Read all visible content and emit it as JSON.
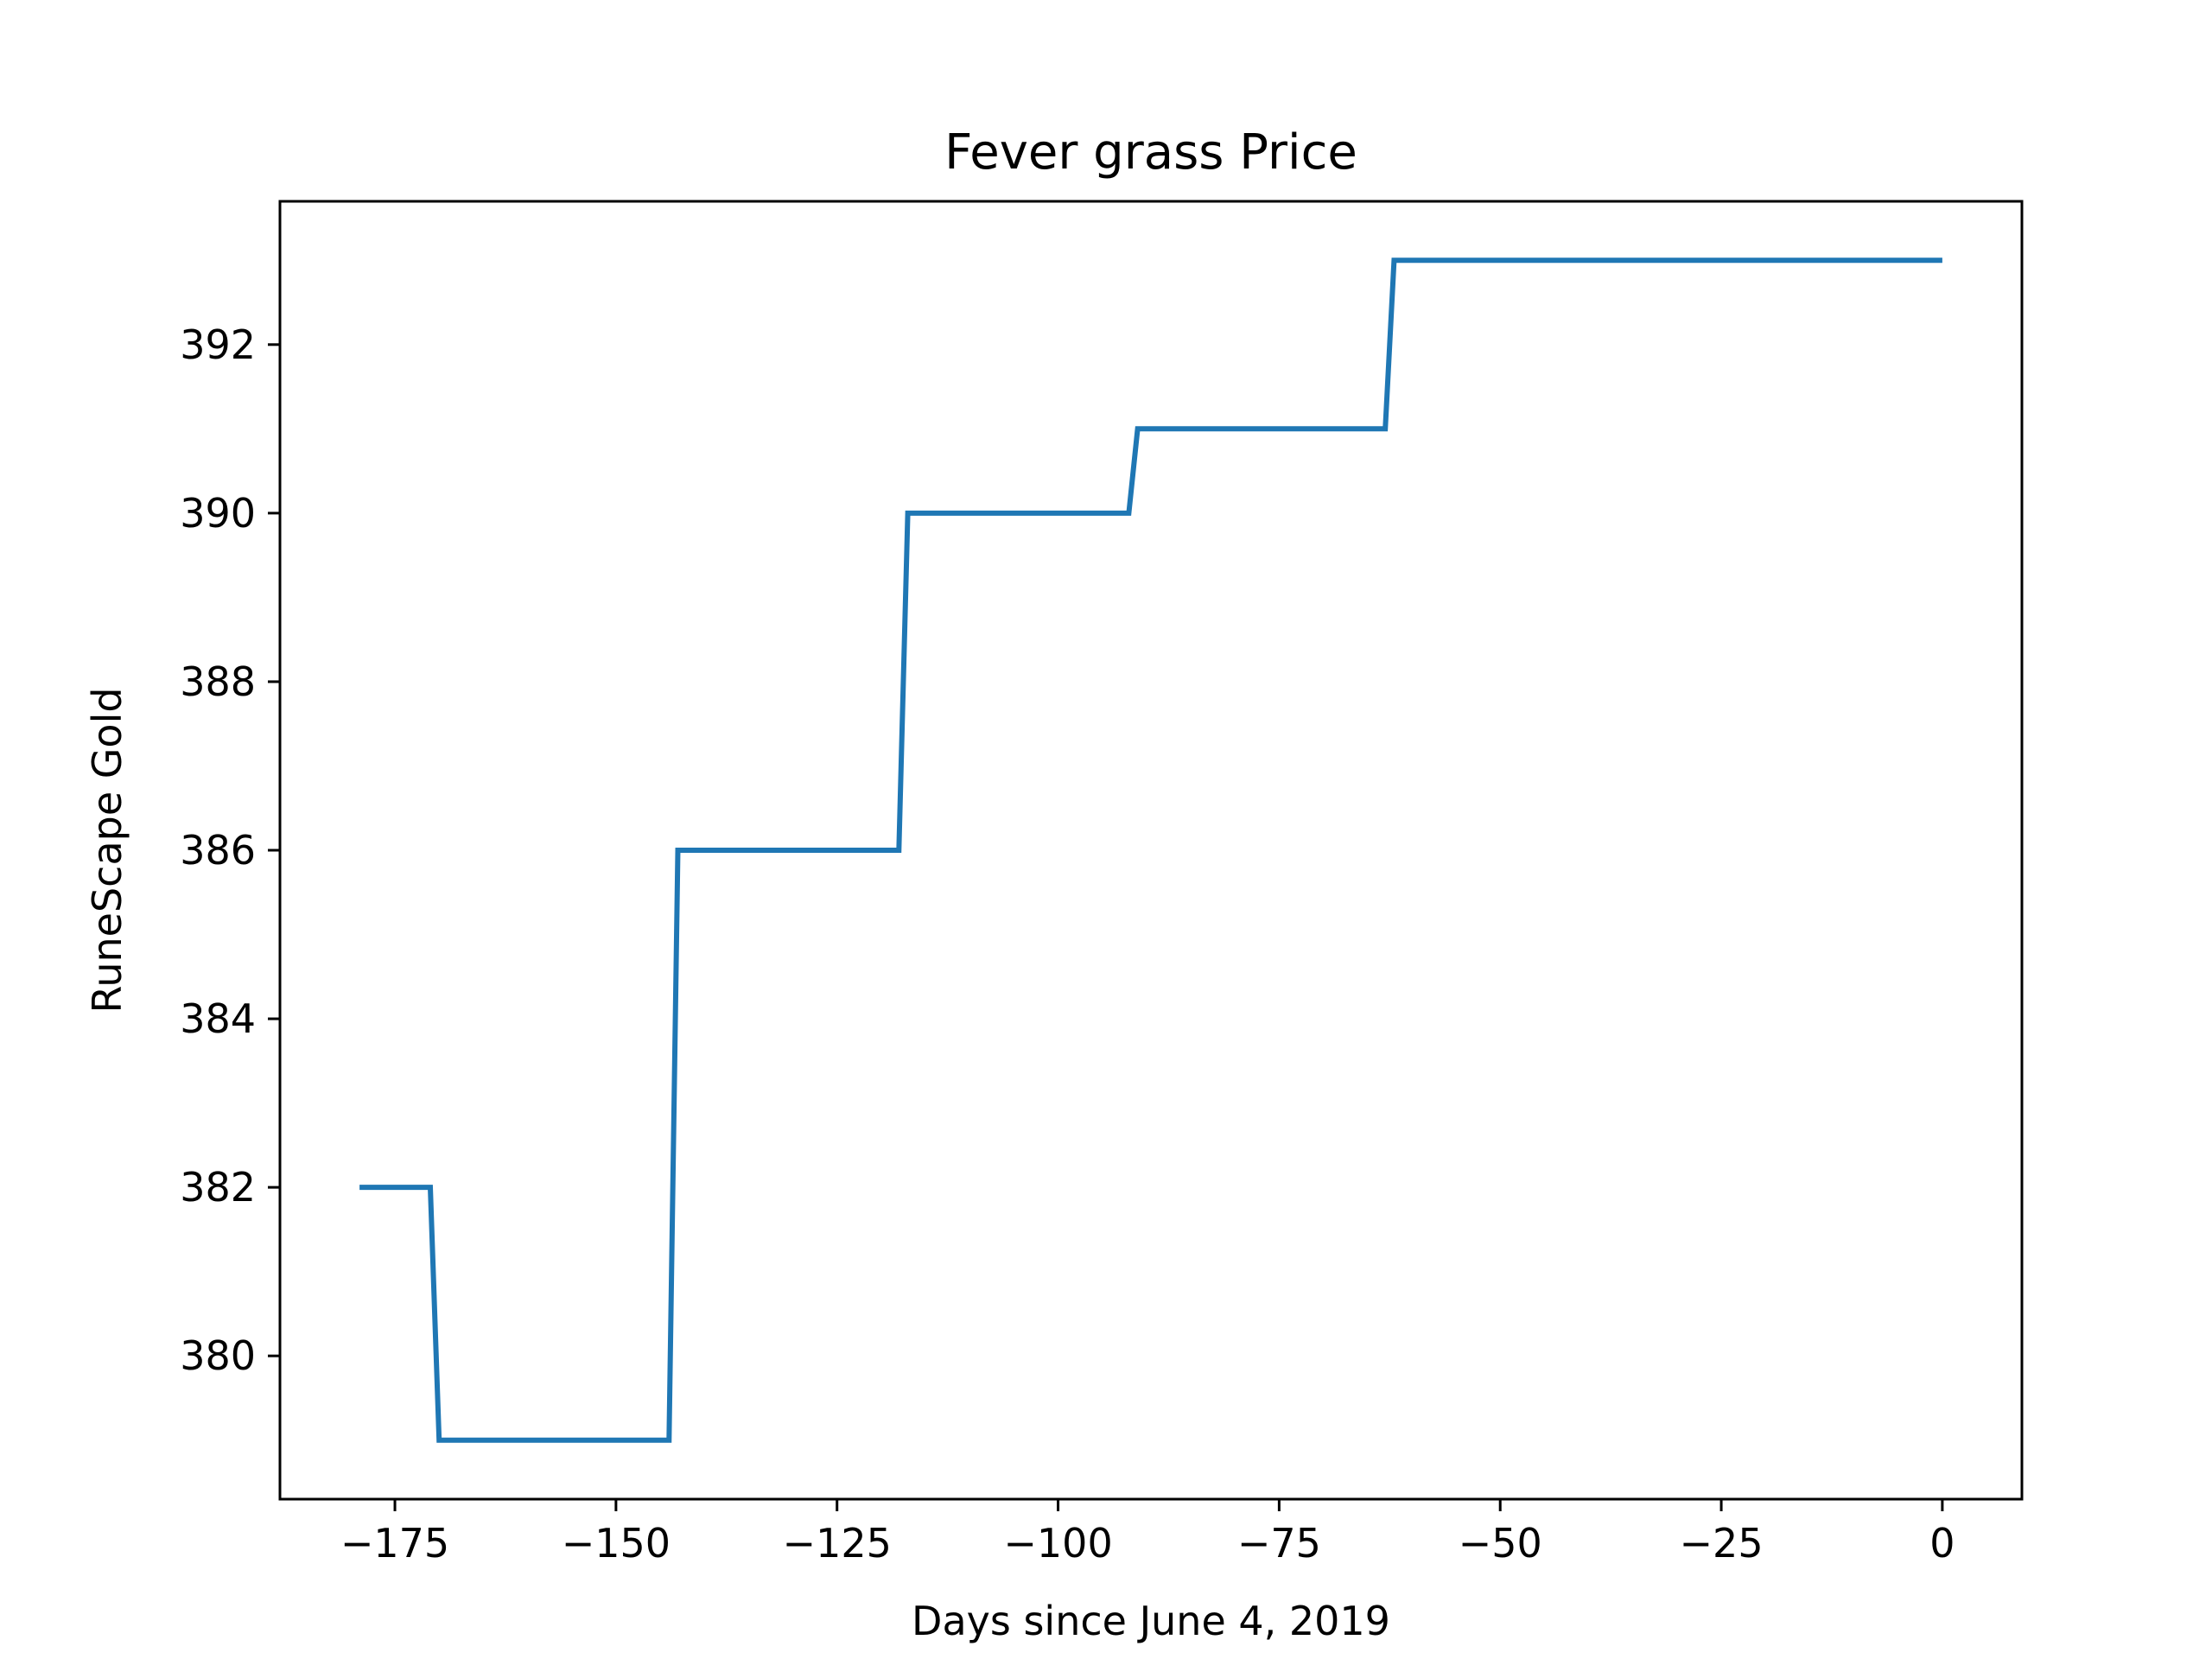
{
  "chart_data": {
    "type": "line",
    "title": "Fever grass Price",
    "xlabel": "Days since June 4, 2019",
    "ylabel": "RuneScape Gold",
    "xlim": [
      -188,
      9
    ],
    "ylim": [
      378.3,
      393.7
    ],
    "xticks": [
      -175,
      -150,
      -125,
      -100,
      -75,
      -50,
      -25,
      0
    ],
    "xtick_labels": [
      "−175",
      "−150",
      "−125",
      "−100",
      "−75",
      "−50",
      "−25",
      "0"
    ],
    "yticks": [
      380,
      382,
      384,
      386,
      388,
      390,
      392
    ],
    "ytick_labels": [
      "380",
      "382",
      "384",
      "386",
      "388",
      "390",
      "392"
    ],
    "grid": false,
    "series": [
      {
        "color": "#1f77b4",
        "x": [
          -179,
          -171,
          -170,
          -144,
          -143,
          -118,
          -117,
          -92,
          -91,
          -63,
          -62,
          0
        ],
        "y": [
          382,
          382,
          379,
          379,
          386,
          386,
          390,
          390,
          391,
          391,
          393,
          393
        ]
      }
    ]
  }
}
